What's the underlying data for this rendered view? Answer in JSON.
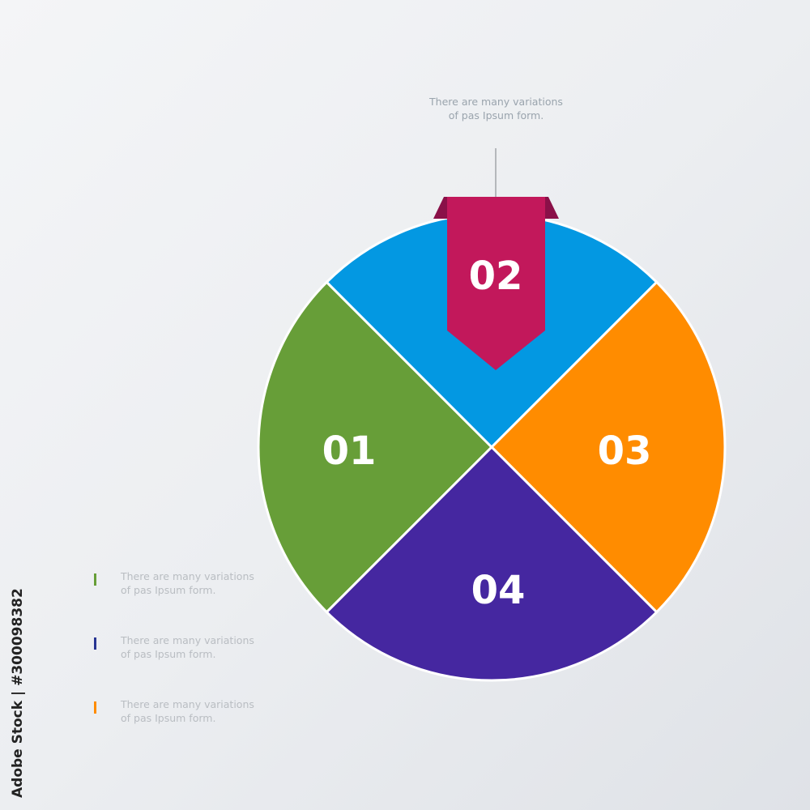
{
  "diagram": {
    "segments": [
      {
        "label": "01",
        "color": "#679e38"
      },
      {
        "label": "02",
        "color": "#0398e2"
      },
      {
        "label": "03",
        "color": "#ff8c00"
      },
      {
        "label": "04",
        "color": "#4527a0"
      }
    ],
    "ribbon": {
      "label": "02",
      "color": "#c2185b",
      "fold_color": "#8a1048"
    },
    "top_note": "There are many variations of pas Ipsum form."
  },
  "legend": [
    {
      "text_line1": "There are many variations",
      "text_line2": "of pas Ipsum form.",
      "color": "#679e38"
    },
    {
      "text_line1": "There are many variations",
      "text_line2": "of pas Ipsum form.",
      "color": "#283593"
    },
    {
      "text_line1": "There are many variations",
      "text_line2": "of pas Ipsum form.",
      "color": "#ff8c00"
    }
  ],
  "watermark": "Adobe Stock | #300098382"
}
